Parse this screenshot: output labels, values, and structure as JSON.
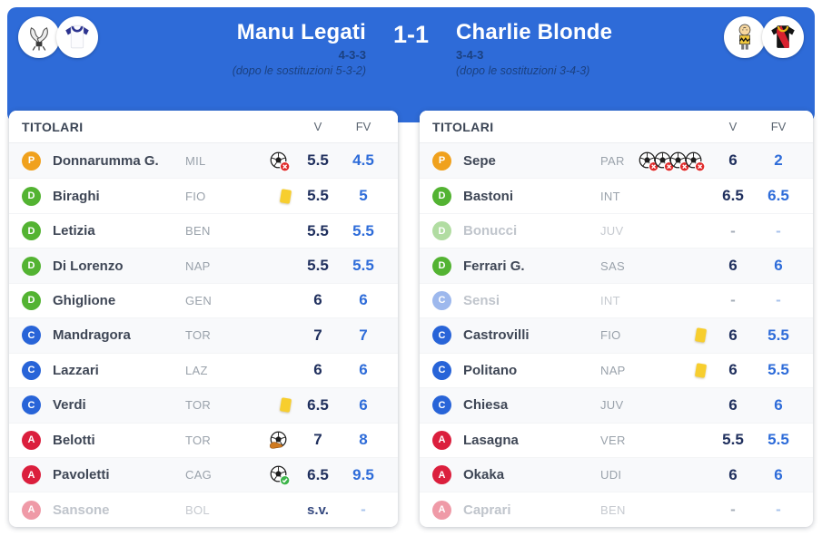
{
  "header": {
    "score": "1-1",
    "home": {
      "name": "Manu Legati",
      "formation": "4-3-3",
      "subs_note": "(dopo le sostituzioni 5-3-2)"
    },
    "away": {
      "name": "Charlie Blonde",
      "formation": "3-4-3",
      "subs_note": "(dopo le sostituzioni 3-4-3)"
    }
  },
  "colors": {
    "header_blue": "#2e6bd8",
    "vote_navy": "#20305e",
    "fantavote_blue": "#2e6cd9",
    "yellow_card": "#f7ce2e",
    "pos": {
      "P": "#f0a11d",
      "D": "#53b332",
      "C": "#2864d8",
      "A": "#db1f3d"
    }
  },
  "tables": {
    "home": {
      "title": "TITOLARI",
      "col_v": "V",
      "col_fv": "FV",
      "rows": [
        {
          "pos": "P",
          "name": "Donnarumma G.",
          "team": "MIL",
          "events": [
            {
              "type": "goal-conceded",
              "count": 1
            }
          ],
          "v": "5.5",
          "fv": "4.5",
          "faded": false
        },
        {
          "pos": "D",
          "name": "Biraghi",
          "team": "FIO",
          "events": [
            {
              "type": "yellow-card",
              "count": 1
            }
          ],
          "v": "5.5",
          "fv": "5",
          "faded": false
        },
        {
          "pos": "D",
          "name": "Letizia",
          "team": "BEN",
          "events": [],
          "v": "5.5",
          "fv": "5.5",
          "faded": false
        },
        {
          "pos": "D",
          "name": "Di Lorenzo",
          "team": "NAP",
          "events": [],
          "v": "5.5",
          "fv": "5.5",
          "faded": false
        },
        {
          "pos": "D",
          "name": "Ghiglione",
          "team": "GEN",
          "events": [],
          "v": "6",
          "fv": "6",
          "faded": false
        },
        {
          "pos": "C",
          "name": "Mandragora",
          "team": "TOR",
          "events": [],
          "v": "7",
          "fv": "7",
          "faded": false
        },
        {
          "pos": "C",
          "name": "Lazzari",
          "team": "LAZ",
          "events": [],
          "v": "6",
          "fv": "6",
          "faded": false
        },
        {
          "pos": "C",
          "name": "Verdi",
          "team": "TOR",
          "events": [
            {
              "type": "yellow-card",
              "count": 1
            }
          ],
          "v": "6.5",
          "fv": "6",
          "faded": false
        },
        {
          "pos": "A",
          "name": "Belotti",
          "team": "TOR",
          "events": [
            {
              "type": "assist",
              "count": 1
            }
          ],
          "v": "7",
          "fv": "8",
          "faded": false
        },
        {
          "pos": "A",
          "name": "Pavoletti",
          "team": "CAG",
          "events": [
            {
              "type": "goal",
              "count": 1
            }
          ],
          "v": "6.5",
          "fv": "9.5",
          "faded": false
        },
        {
          "pos": "A",
          "name": "Sansone",
          "team": "BOL",
          "events": [],
          "v": "s.v.",
          "fv": "-",
          "faded": true
        }
      ]
    },
    "away": {
      "title": "TITOLARI",
      "col_v": "V",
      "col_fv": "FV",
      "rows": [
        {
          "pos": "P",
          "name": "Sepe",
          "team": "PAR",
          "events": [
            {
              "type": "goal-conceded",
              "count": 4
            }
          ],
          "v": "6",
          "fv": "2",
          "faded": false
        },
        {
          "pos": "D",
          "name": "Bastoni",
          "team": "INT",
          "events": [],
          "v": "6.5",
          "fv": "6.5",
          "faded": false
        },
        {
          "pos": "D",
          "name": "Bonucci",
          "team": "JUV",
          "events": [],
          "v": "-",
          "fv": "-",
          "faded": true
        },
        {
          "pos": "D",
          "name": "Ferrari G.",
          "team": "SAS",
          "events": [],
          "v": "6",
          "fv": "6",
          "faded": false
        },
        {
          "pos": "C",
          "name": "Sensi",
          "team": "INT",
          "events": [],
          "v": "-",
          "fv": "-",
          "faded": true
        },
        {
          "pos": "C",
          "name": "Castrovilli",
          "team": "FIO",
          "events": [
            {
              "type": "yellow-card",
              "count": 1
            }
          ],
          "v": "6",
          "fv": "5.5",
          "faded": false
        },
        {
          "pos": "C",
          "name": "Politano",
          "team": "NAP",
          "events": [
            {
              "type": "yellow-card",
              "count": 1
            }
          ],
          "v": "6",
          "fv": "5.5",
          "faded": false
        },
        {
          "pos": "C",
          "name": "Chiesa",
          "team": "JUV",
          "events": [],
          "v": "6",
          "fv": "6",
          "faded": false
        },
        {
          "pos": "A",
          "name": "Lasagna",
          "team": "VER",
          "events": [],
          "v": "5.5",
          "fv": "5.5",
          "faded": false
        },
        {
          "pos": "A",
          "name": "Okaka",
          "team": "UDI",
          "events": [],
          "v": "6",
          "fv": "6",
          "faded": false
        },
        {
          "pos": "A",
          "name": "Caprari",
          "team": "BEN",
          "events": [],
          "v": "-",
          "fv": "-",
          "faded": true
        }
      ]
    }
  }
}
